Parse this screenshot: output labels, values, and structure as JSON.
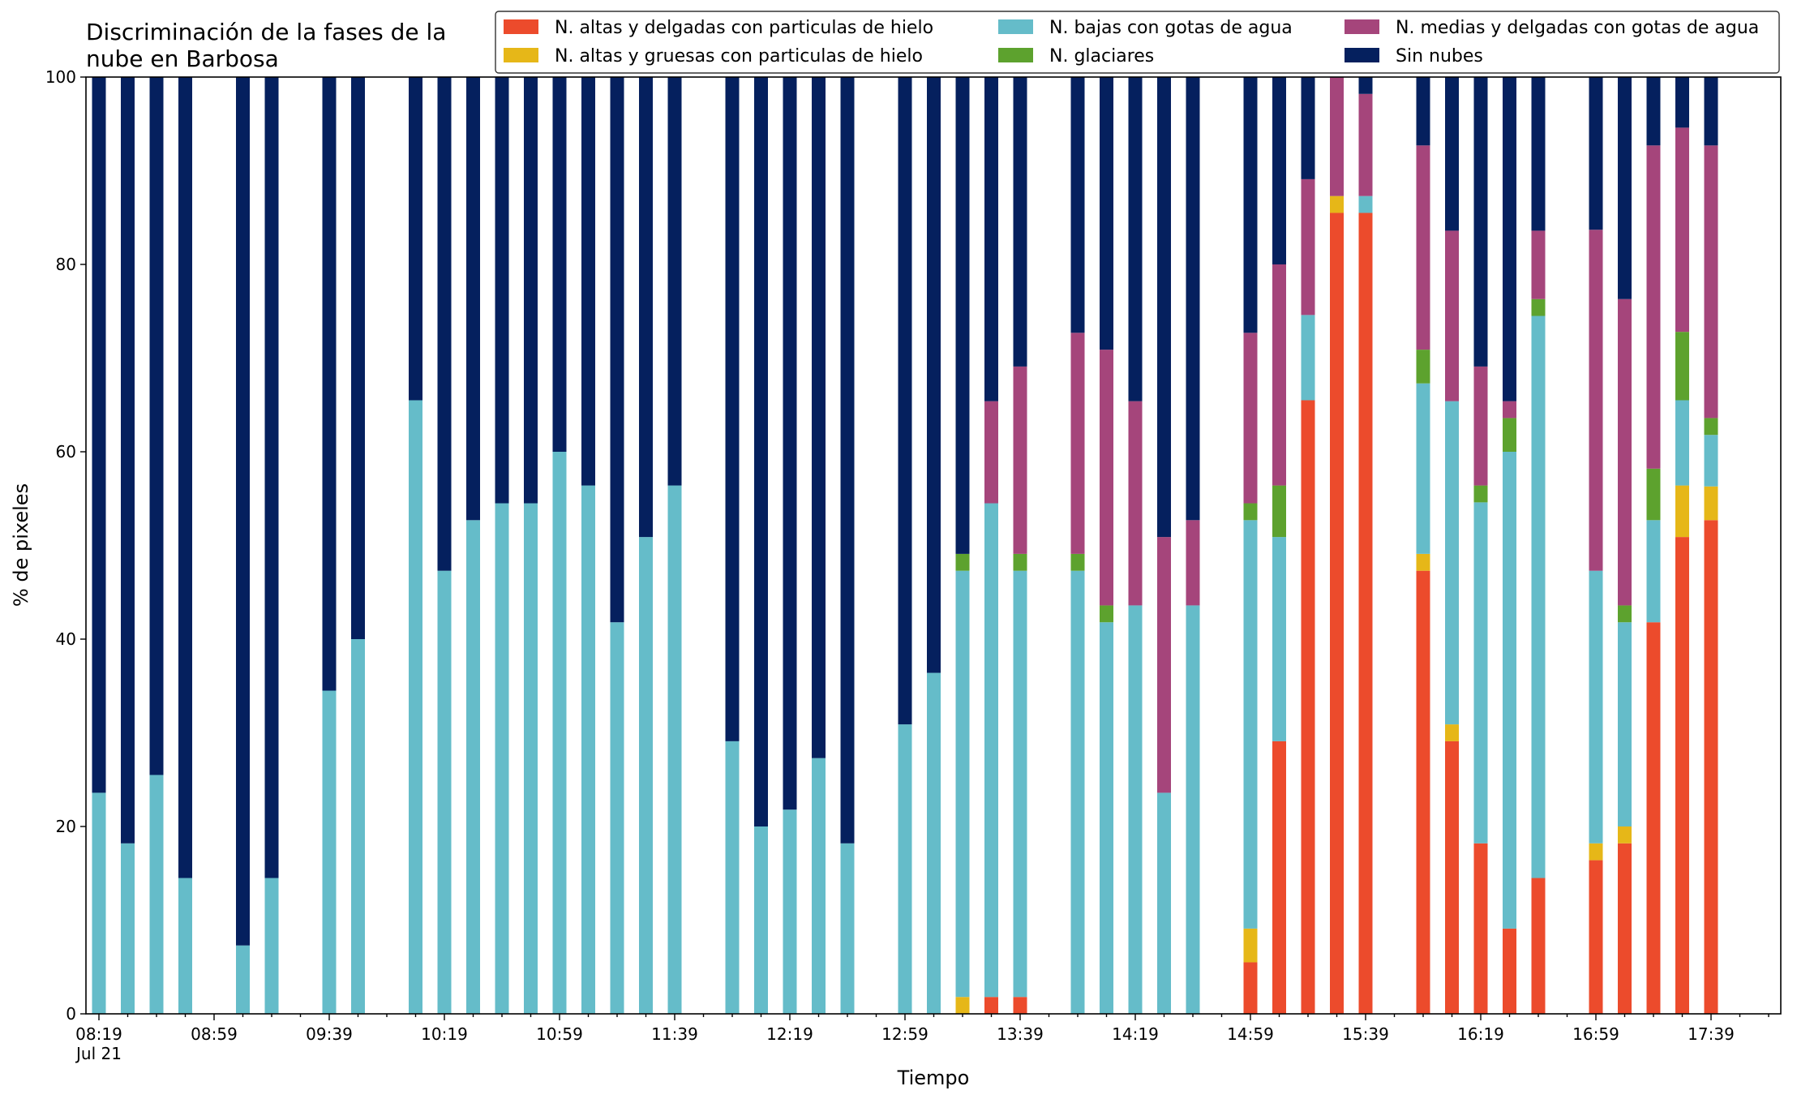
{
  "chart_data": {
    "type": "bar",
    "stacked": true,
    "title": "Discriminación de la fases de la\nnube en Barbosa",
    "xlabel": "Tiempo",
    "ylabel": "% de pixeles",
    "ylim": [
      0,
      100
    ],
    "yticks": [
      0,
      20,
      40,
      60,
      80,
      100
    ],
    "grid": false,
    "legend_position": "top-right",
    "legend_columns": 3,
    "x_start_time": "08:19",
    "x_end_time": "18:09",
    "x_date_label": "Jul 21",
    "x_tick_labels": [
      "08:19",
      "08:59",
      "09:39",
      "10:19",
      "10:59",
      "11:39",
      "12:19",
      "12:59",
      "13:39",
      "14:19",
      "14:59",
      "15:39",
      "16:19",
      "16:59",
      "17:39"
    ],
    "x_major_step_minutes": 40,
    "x_minor_step_minutes": 10,
    "series": [
      {
        "name": "N. altas y delgadas con particulas de hielo",
        "color": "#ec4b2c"
      },
      {
        "name": "N. altas y gruesas con particulas de hielo",
        "color": "#e6b718"
      },
      {
        "name": "N. bajas con gotas de agua",
        "color": "#65bcc9"
      },
      {
        "name": "N. glaciares",
        "color": "#5da22e"
      },
      {
        "name": "N. medias y delgadas con gotas de agua",
        "color": "#a5457b"
      },
      {
        "name": "Sin nubes",
        "color": "#05205e"
      }
    ],
    "legend_order": [
      0,
      2,
      4,
      1,
      3,
      5
    ],
    "bars": [
      {
        "time": "08:19",
        "values": [
          0,
          0,
          23.6,
          0,
          0,
          76.4
        ]
      },
      {
        "time": "08:29",
        "values": [
          0,
          0,
          18.2,
          0,
          0,
          81.8
        ]
      },
      {
        "time": "08:39",
        "values": [
          0,
          0,
          25.5,
          0,
          0,
          74.5
        ]
      },
      {
        "time": "08:49",
        "values": [
          0,
          0,
          14.5,
          0,
          0,
          85.5
        ]
      },
      {
        "time": "09:09",
        "values": [
          0,
          0,
          7.3,
          0,
          0,
          92.7
        ]
      },
      {
        "time": "09:19",
        "values": [
          0,
          0,
          14.5,
          0,
          0,
          85.5
        ]
      },
      {
        "time": "09:39",
        "values": [
          0,
          0,
          34.5,
          0,
          0,
          65.5
        ]
      },
      {
        "time": "09:49",
        "values": [
          0,
          0,
          40.0,
          0,
          0,
          60.0
        ]
      },
      {
        "time": "10:09",
        "values": [
          0,
          0,
          65.5,
          0,
          0,
          34.5
        ]
      },
      {
        "time": "10:19",
        "values": [
          0,
          0,
          47.3,
          0,
          0,
          52.7
        ]
      },
      {
        "time": "10:29",
        "values": [
          0,
          0,
          52.7,
          0,
          0,
          47.3
        ]
      },
      {
        "time": "10:39",
        "values": [
          0,
          0,
          54.5,
          0,
          0,
          45.5
        ]
      },
      {
        "time": "10:49",
        "values": [
          0,
          0,
          54.5,
          0,
          0,
          45.5
        ]
      },
      {
        "time": "10:59",
        "values": [
          0,
          0,
          60.0,
          0,
          0,
          40.0
        ]
      },
      {
        "time": "11:09",
        "values": [
          0,
          0,
          56.4,
          0,
          0,
          43.6
        ]
      },
      {
        "time": "11:19",
        "values": [
          0,
          0,
          41.8,
          0,
          0,
          58.2
        ]
      },
      {
        "time": "11:29",
        "values": [
          0,
          0,
          50.9,
          0,
          0,
          49.1
        ]
      },
      {
        "time": "11:39",
        "values": [
          0,
          0,
          56.4,
          0,
          0,
          43.6
        ]
      },
      {
        "time": "11:59",
        "values": [
          0,
          0,
          29.1,
          0,
          0,
          70.9
        ]
      },
      {
        "time": "12:09",
        "values": [
          0,
          0,
          20.0,
          0,
          0,
          80.0
        ]
      },
      {
        "time": "12:19",
        "values": [
          0,
          0,
          21.8,
          0,
          0,
          78.2
        ]
      },
      {
        "time": "12:29",
        "values": [
          0,
          0,
          27.3,
          0,
          0,
          72.7
        ]
      },
      {
        "time": "12:39",
        "values": [
          0,
          0,
          18.2,
          0,
          0,
          81.8
        ]
      },
      {
        "time": "12:59",
        "values": [
          0,
          0,
          30.9,
          0,
          0,
          69.1
        ]
      },
      {
        "time": "13:09",
        "values": [
          0,
          0,
          36.4,
          0,
          0,
          63.6
        ]
      },
      {
        "time": "13:19",
        "values": [
          0,
          1.8,
          45.5,
          1.8,
          0,
          50.9
        ]
      },
      {
        "time": "13:29",
        "values": [
          1.8,
          0,
          52.7,
          0,
          10.9,
          34.6
        ]
      },
      {
        "time": "13:39",
        "values": [
          1.8,
          0,
          45.5,
          1.8,
          20.0,
          30.9
        ]
      },
      {
        "time": "13:59",
        "values": [
          0,
          0,
          47.3,
          1.8,
          23.6,
          27.3
        ]
      },
      {
        "time": "14:09",
        "values": [
          0,
          0,
          41.8,
          1.8,
          27.3,
          29.1
        ]
      },
      {
        "time": "14:19",
        "values": [
          0,
          0,
          43.6,
          0,
          21.8,
          34.6
        ]
      },
      {
        "time": "14:29",
        "values": [
          0,
          0,
          23.6,
          0,
          27.3,
          49.1
        ]
      },
      {
        "time": "14:39",
        "values": [
          0,
          0,
          43.6,
          0,
          9.1,
          47.3
        ]
      },
      {
        "time": "14:59",
        "values": [
          5.5,
          3.6,
          43.6,
          1.8,
          18.2,
          27.3
        ]
      },
      {
        "time": "15:09",
        "values": [
          29.1,
          0,
          21.8,
          5.5,
          23.6,
          20.0
        ]
      },
      {
        "time": "15:19",
        "values": [
          65.5,
          0,
          9.1,
          0,
          14.5,
          10.9
        ]
      },
      {
        "time": "15:29",
        "values": [
          85.5,
          1.8,
          0,
          0,
          12.7,
          0
        ]
      },
      {
        "time": "15:39",
        "values": [
          85.5,
          0,
          1.8,
          0,
          10.9,
          1.8
        ]
      },
      {
        "time": "15:59",
        "values": [
          47.3,
          1.8,
          18.2,
          3.6,
          21.8,
          7.3
        ]
      },
      {
        "time": "16:09",
        "values": [
          29.1,
          1.8,
          34.5,
          0,
          18.2,
          16.4
        ]
      },
      {
        "time": "16:19",
        "values": [
          18.2,
          0,
          36.4,
          1.8,
          12.7,
          30.9
        ]
      },
      {
        "time": "16:29",
        "values": [
          9.1,
          0,
          50.9,
          3.6,
          1.8,
          34.6
        ]
      },
      {
        "time": "16:39",
        "values": [
          14.5,
          0,
          60.0,
          1.8,
          7.3,
          16.4
        ]
      },
      {
        "time": "16:59",
        "values": [
          16.4,
          1.8,
          29.1,
          0,
          36.4,
          16.3
        ]
      },
      {
        "time": "17:09",
        "values": [
          18.2,
          1.8,
          21.8,
          1.8,
          32.7,
          23.7
        ]
      },
      {
        "time": "17:19",
        "values": [
          41.8,
          0,
          10.9,
          5.5,
          34.5,
          7.3
        ]
      },
      {
        "time": "17:29",
        "values": [
          50.9,
          5.5,
          9.1,
          7.3,
          21.8,
          5.4
        ]
      },
      {
        "time": "17:39",
        "values": [
          52.7,
          3.6,
          5.5,
          1.8,
          29.1,
          7.3
        ]
      }
    ]
  }
}
